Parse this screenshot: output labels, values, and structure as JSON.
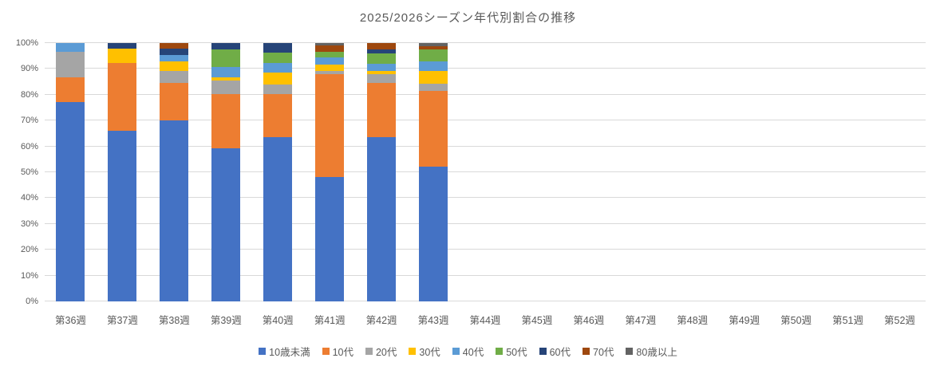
{
  "chart_data": {
    "type": "bar",
    "stacked": "percent",
    "title": "2025/2026シーズン年代別割合の推移",
    "legend_position": "bottom",
    "grid": true,
    "background": "#FFFFFF",
    "grid_color": "#D9D9D9",
    "text_color": "#595959",
    "categories": [
      "第36週",
      "第37週",
      "第38週",
      "第39週",
      "第40週",
      "第41週",
      "第42週",
      "第43週",
      "第44週",
      "第45週",
      "第46週",
      "第47週",
      "第48週",
      "第49週",
      "第50週",
      "第51週",
      "第52週"
    ],
    "y_axis": {
      "min": 0,
      "max": 100,
      "ticks": [
        "0%",
        "10%",
        "20%",
        "30%",
        "40%",
        "50%",
        "60%",
        "70%",
        "80%",
        "90%",
        "100%"
      ]
    },
    "series": [
      {
        "name": "10歳未満",
        "color": "#4472C4",
        "values": [
          77.3,
          66.0,
          70.0,
          59.4,
          63.5,
          48.3,
          63.7,
          52.2,
          0,
          0,
          0,
          0,
          0,
          0,
          0,
          0,
          0
        ]
      },
      {
        "name": "10代",
        "color": "#ED7D31",
        "values": [
          9.5,
          26.3,
          14.6,
          20.8,
          16.6,
          39.6,
          20.9,
          29.4,
          0,
          0,
          0,
          0,
          0,
          0,
          0,
          0,
          0
        ]
      },
      {
        "name": "20代",
        "color": "#A5A5A5",
        "values": [
          9.8,
          0,
          4.6,
          5.4,
          3.8,
          1.3,
          3.4,
          2.7,
          0,
          0,
          0,
          0,
          0,
          0,
          0,
          0,
          0
        ]
      },
      {
        "name": "30代",
        "color": "#FFC000",
        "values": [
          0,
          5.4,
          3.6,
          1.2,
          4.6,
          2.5,
          1.2,
          5.0,
          0,
          0,
          0,
          0,
          0,
          0,
          0,
          0,
          0
        ]
      },
      {
        "name": "40代",
        "color": "#5B9BD5",
        "values": [
          3.4,
          0,
          2.6,
          4.1,
          3.9,
          2.7,
          2.9,
          3.6,
          0,
          0,
          0,
          0,
          0,
          0,
          0,
          0,
          0
        ]
      },
      {
        "name": "50代",
        "color": "#70AD47",
        "values": [
          0,
          0,
          0,
          6.7,
          3.8,
          2.1,
          3.8,
          4.6,
          0,
          0,
          0,
          0,
          0,
          0,
          0,
          0,
          0
        ]
      },
      {
        "name": "60代",
        "color": "#264478",
        "values": [
          0,
          2.3,
          2.6,
          2.4,
          3.8,
          0,
          1.6,
          0,
          0,
          0,
          0,
          0,
          0,
          0,
          0,
          0,
          0
        ]
      },
      {
        "name": "70代",
        "color": "#9E480E",
        "values": [
          0,
          0,
          2.0,
          0,
          0,
          2.5,
          2.5,
          1.3,
          0,
          0,
          0,
          0,
          0,
          0,
          0,
          0,
          0
        ]
      },
      {
        "name": "80歳以上",
        "color": "#636363",
        "values": [
          0,
          0,
          0,
          0,
          0,
          1.0,
          0,
          1.2,
          0,
          0,
          0,
          0,
          0,
          0,
          0,
          0,
          0
        ]
      }
    ]
  }
}
